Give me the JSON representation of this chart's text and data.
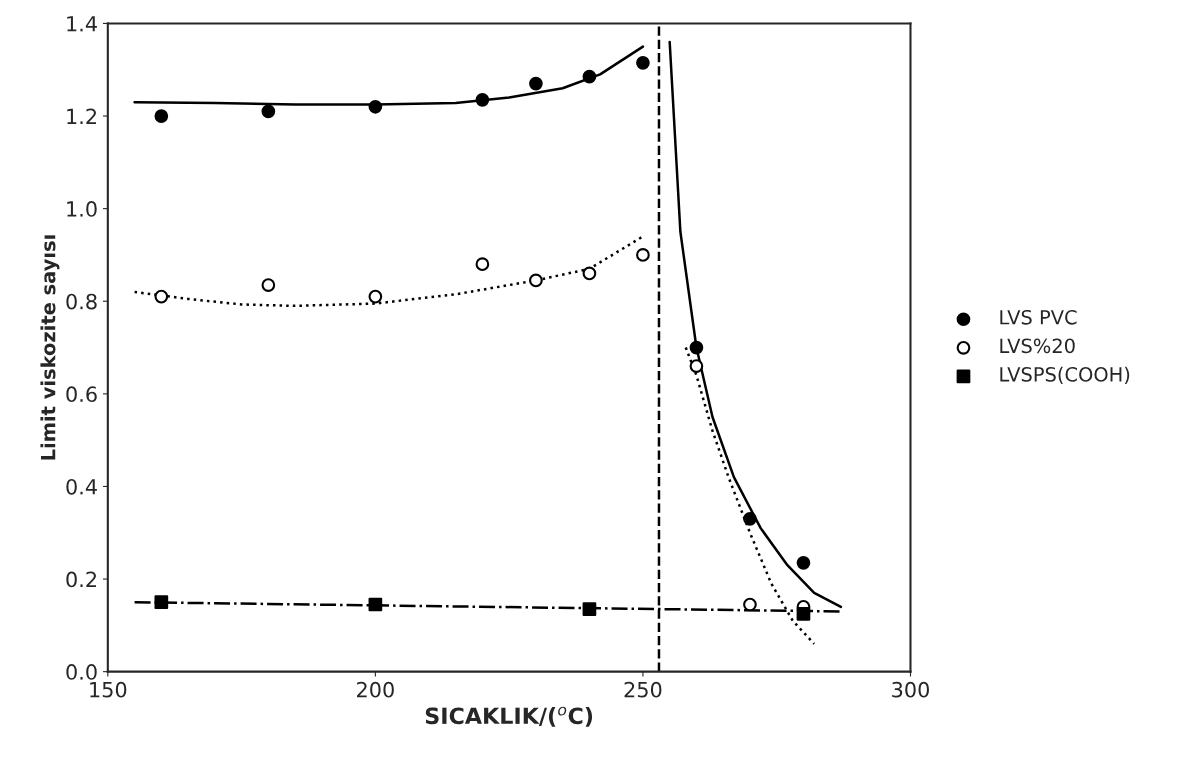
{
  "chart_data": {
    "type": "scatter",
    "xlabel": "SICAKLIK/($^{o}$C)",
    "ylabel": "Limit viskozite sayısı",
    "xlim": [
      150,
      300
    ],
    "xticks": [
      150,
      200,
      250,
      300
    ],
    "ylim": [
      0,
      1.4
    ],
    "yticks": [
      {
        "value": 0,
        "label": "0.0"
      },
      0.2,
      0.4,
      0.6,
      0.8,
      {
        "value": 1.0,
        "label": "1.0"
      },
      1.2,
      1.4
    ],
    "grid": false,
    "legend": "right",
    "ref_lines": [
      {
        "axis": "x",
        "value": 253,
        "color": "#000000",
        "line_style": "dashed"
      }
    ],
    "series": [
      {
        "name": "LVS PVC",
        "marker": "circle",
        "color": "#000000",
        "x": [
          160,
          180,
          200,
          220,
          230,
          240,
          250,
          260,
          270,
          280
        ],
        "values": [
          1.2,
          1.21,
          1.22,
          1.235,
          1.27,
          1.285,
          1.315,
          0.7,
          0.33,
          0.235
        ]
      },
      {
        "name": "LVS%20",
        "marker": "circle",
        "color": "#ffffff",
        "x": [
          160,
          180,
          200,
          220,
          230,
          240,
          250,
          260,
          270,
          280
        ],
        "values": [
          0.81,
          0.835,
          0.81,
          0.88,
          0.845,
          0.86,
          0.9,
          0.66,
          0.145,
          0.14
        ]
      },
      {
        "name": "LVSPS(COOH)",
        "marker": "square",
        "color": "#000000",
        "x": [
          160,
          200,
          240,
          280
        ],
        "values": [
          0.15,
          0.145,
          0.135,
          0.125
        ]
      },
      {
        "type": "line",
        "line_style": "solid",
        "color": "#000000",
        "x": [
          155,
          170,
          185,
          200,
          215,
          225,
          235,
          242,
          250
        ],
        "values": [
          1.23,
          1.228,
          1.225,
          1.225,
          1.228,
          1.24,
          1.26,
          1.29,
          1.35
        ]
      },
      {
        "type": "line",
        "line_style": "solid",
        "color": "#000000",
        "x": [
          255,
          257,
          260,
          263,
          267,
          272,
          277,
          282,
          287
        ],
        "values": [
          1.36,
          0.95,
          0.7,
          0.55,
          0.42,
          0.31,
          0.23,
          0.17,
          0.14
        ]
      },
      {
        "type": "line",
        "line_style": "dotted",
        "color": "#000000",
        "x": [
          155,
          165,
          175,
          185,
          200,
          215,
          230,
          240,
          250
        ],
        "values": [
          0.82,
          0.805,
          0.793,
          0.79,
          0.795,
          0.815,
          0.845,
          0.87,
          0.94
        ]
      },
      {
        "type": "line",
        "line_style": "dotted",
        "color": "#000000",
        "x": [
          258,
          260,
          263,
          266,
          270,
          274,
          278,
          282
        ],
        "values": [
          0.7,
          0.64,
          0.52,
          0.42,
          0.3,
          0.19,
          0.11,
          0.06
        ]
      },
      {
        "type": "line",
        "line_style": "dashdot",
        "color": "#000000",
        "x": [
          155,
          287
        ],
        "values": [
          0.15,
          0.13
        ]
      }
    ]
  }
}
